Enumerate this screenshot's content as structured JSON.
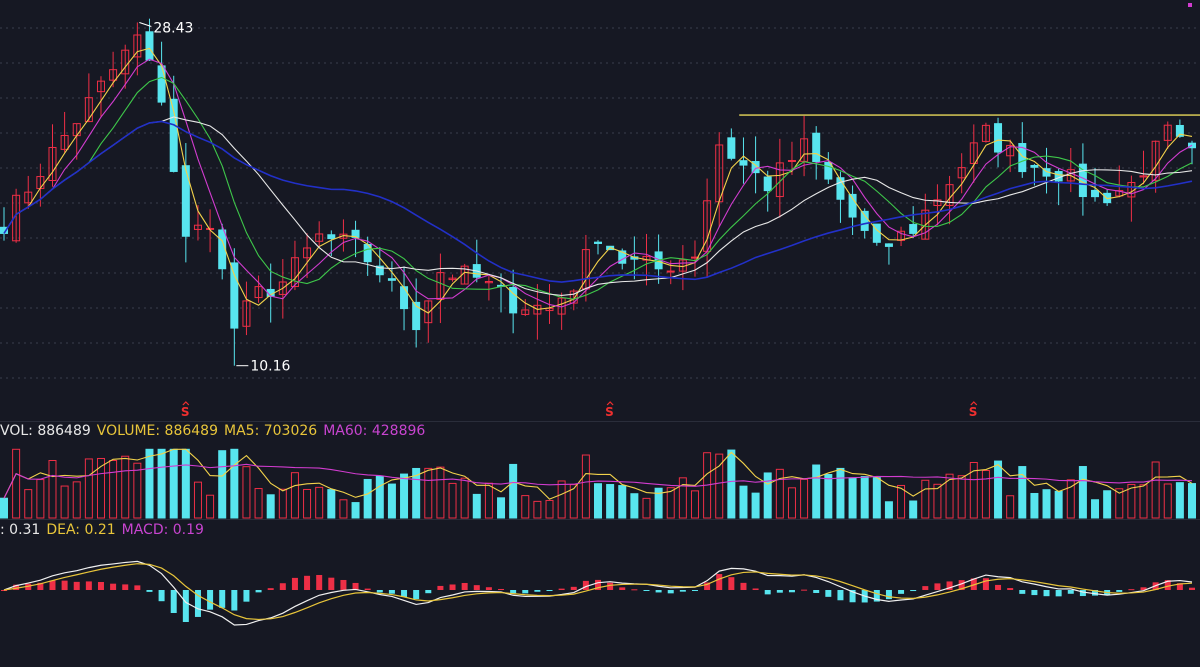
{
  "colors": {
    "background": "#161823",
    "up": "#ee2f46",
    "down": "#58e5ef",
    "ma_white": "#e8e8e8",
    "ma_yellow": "#f2d24b",
    "ma_magenta": "#d23cd0",
    "ma_green": "#3ec74a",
    "ma_blue": "#2230c8",
    "resistance": "#e8d85a",
    "dif": "#f0f0f0",
    "dea": "#e8c53a",
    "macd_label": "#c844d0",
    "grid": "#3a3e4c"
  },
  "price_panel": {
    "high_label": "28.43",
    "low_label": "10.16",
    "high_value": 28.43,
    "low_value": 10.16,
    "s_marker": "S",
    "resistance_level": 23.5
  },
  "volume_panel": {
    "legend": {
      "vol": "VOL: 886489",
      "volume": "VOLUME: 886489",
      "ma5": "MA5: 703026",
      "ma60": "MA60: 428896"
    }
  },
  "macd_panel": {
    "legend": {
      "dif": ": 0.31",
      "dea": "DEA: 0.21",
      "macd": "MACD: 0.19"
    }
  },
  "chart_data": {
    "type": "candlestick",
    "title": "",
    "xlabel": "",
    "ylabel": "",
    "ylim": [
      8.6,
      29.2
    ],
    "grid": true,
    "resistance": 23.5,
    "annotations": [
      {
        "text": "28.43",
        "value": 28.43,
        "at_index": 11
      },
      {
        "text": "10.16",
        "value": 10.16,
        "at_index": 19
      }
    ],
    "s_marker_indices": [
      15,
      50,
      80
    ],
    "close_anchors": [
      [
        0,
        17.8
      ],
      [
        4,
        21.5
      ],
      [
        8,
        25.0
      ],
      [
        11,
        27.6
      ],
      [
        13,
        24.5
      ],
      [
        15,
        16.8
      ],
      [
        17,
        18.0
      ],
      [
        19,
        12.2
      ],
      [
        21,
        14.0
      ],
      [
        23,
        14.6
      ],
      [
        26,
        17.0
      ],
      [
        29,
        16.5
      ],
      [
        31,
        15.2
      ],
      [
        34,
        12.5
      ],
      [
        36,
        15.2
      ],
      [
        39,
        14.8
      ],
      [
        42,
        13.5
      ],
      [
        45,
        13.2
      ],
      [
        47,
        14.5
      ],
      [
        49,
        17.2
      ],
      [
        51,
        15.8
      ],
      [
        54,
        15.3
      ],
      [
        57,
        16.2
      ],
      [
        59,
        22.0
      ],
      [
        61,
        20.8
      ],
      [
        63,
        19.8
      ],
      [
        66,
        21.8
      ],
      [
        69,
        19.0
      ],
      [
        72,
        16.2
      ],
      [
        75,
        17.5
      ],
      [
        78,
        20.0
      ],
      [
        81,
        22.5
      ],
      [
        84,
        21.0
      ],
      [
        87,
        20.5
      ],
      [
        90,
        19.0
      ],
      [
        93,
        19.8
      ],
      [
        96,
        22.5
      ],
      [
        98,
        21.3
      ]
    ],
    "n_candles": 99
  }
}
